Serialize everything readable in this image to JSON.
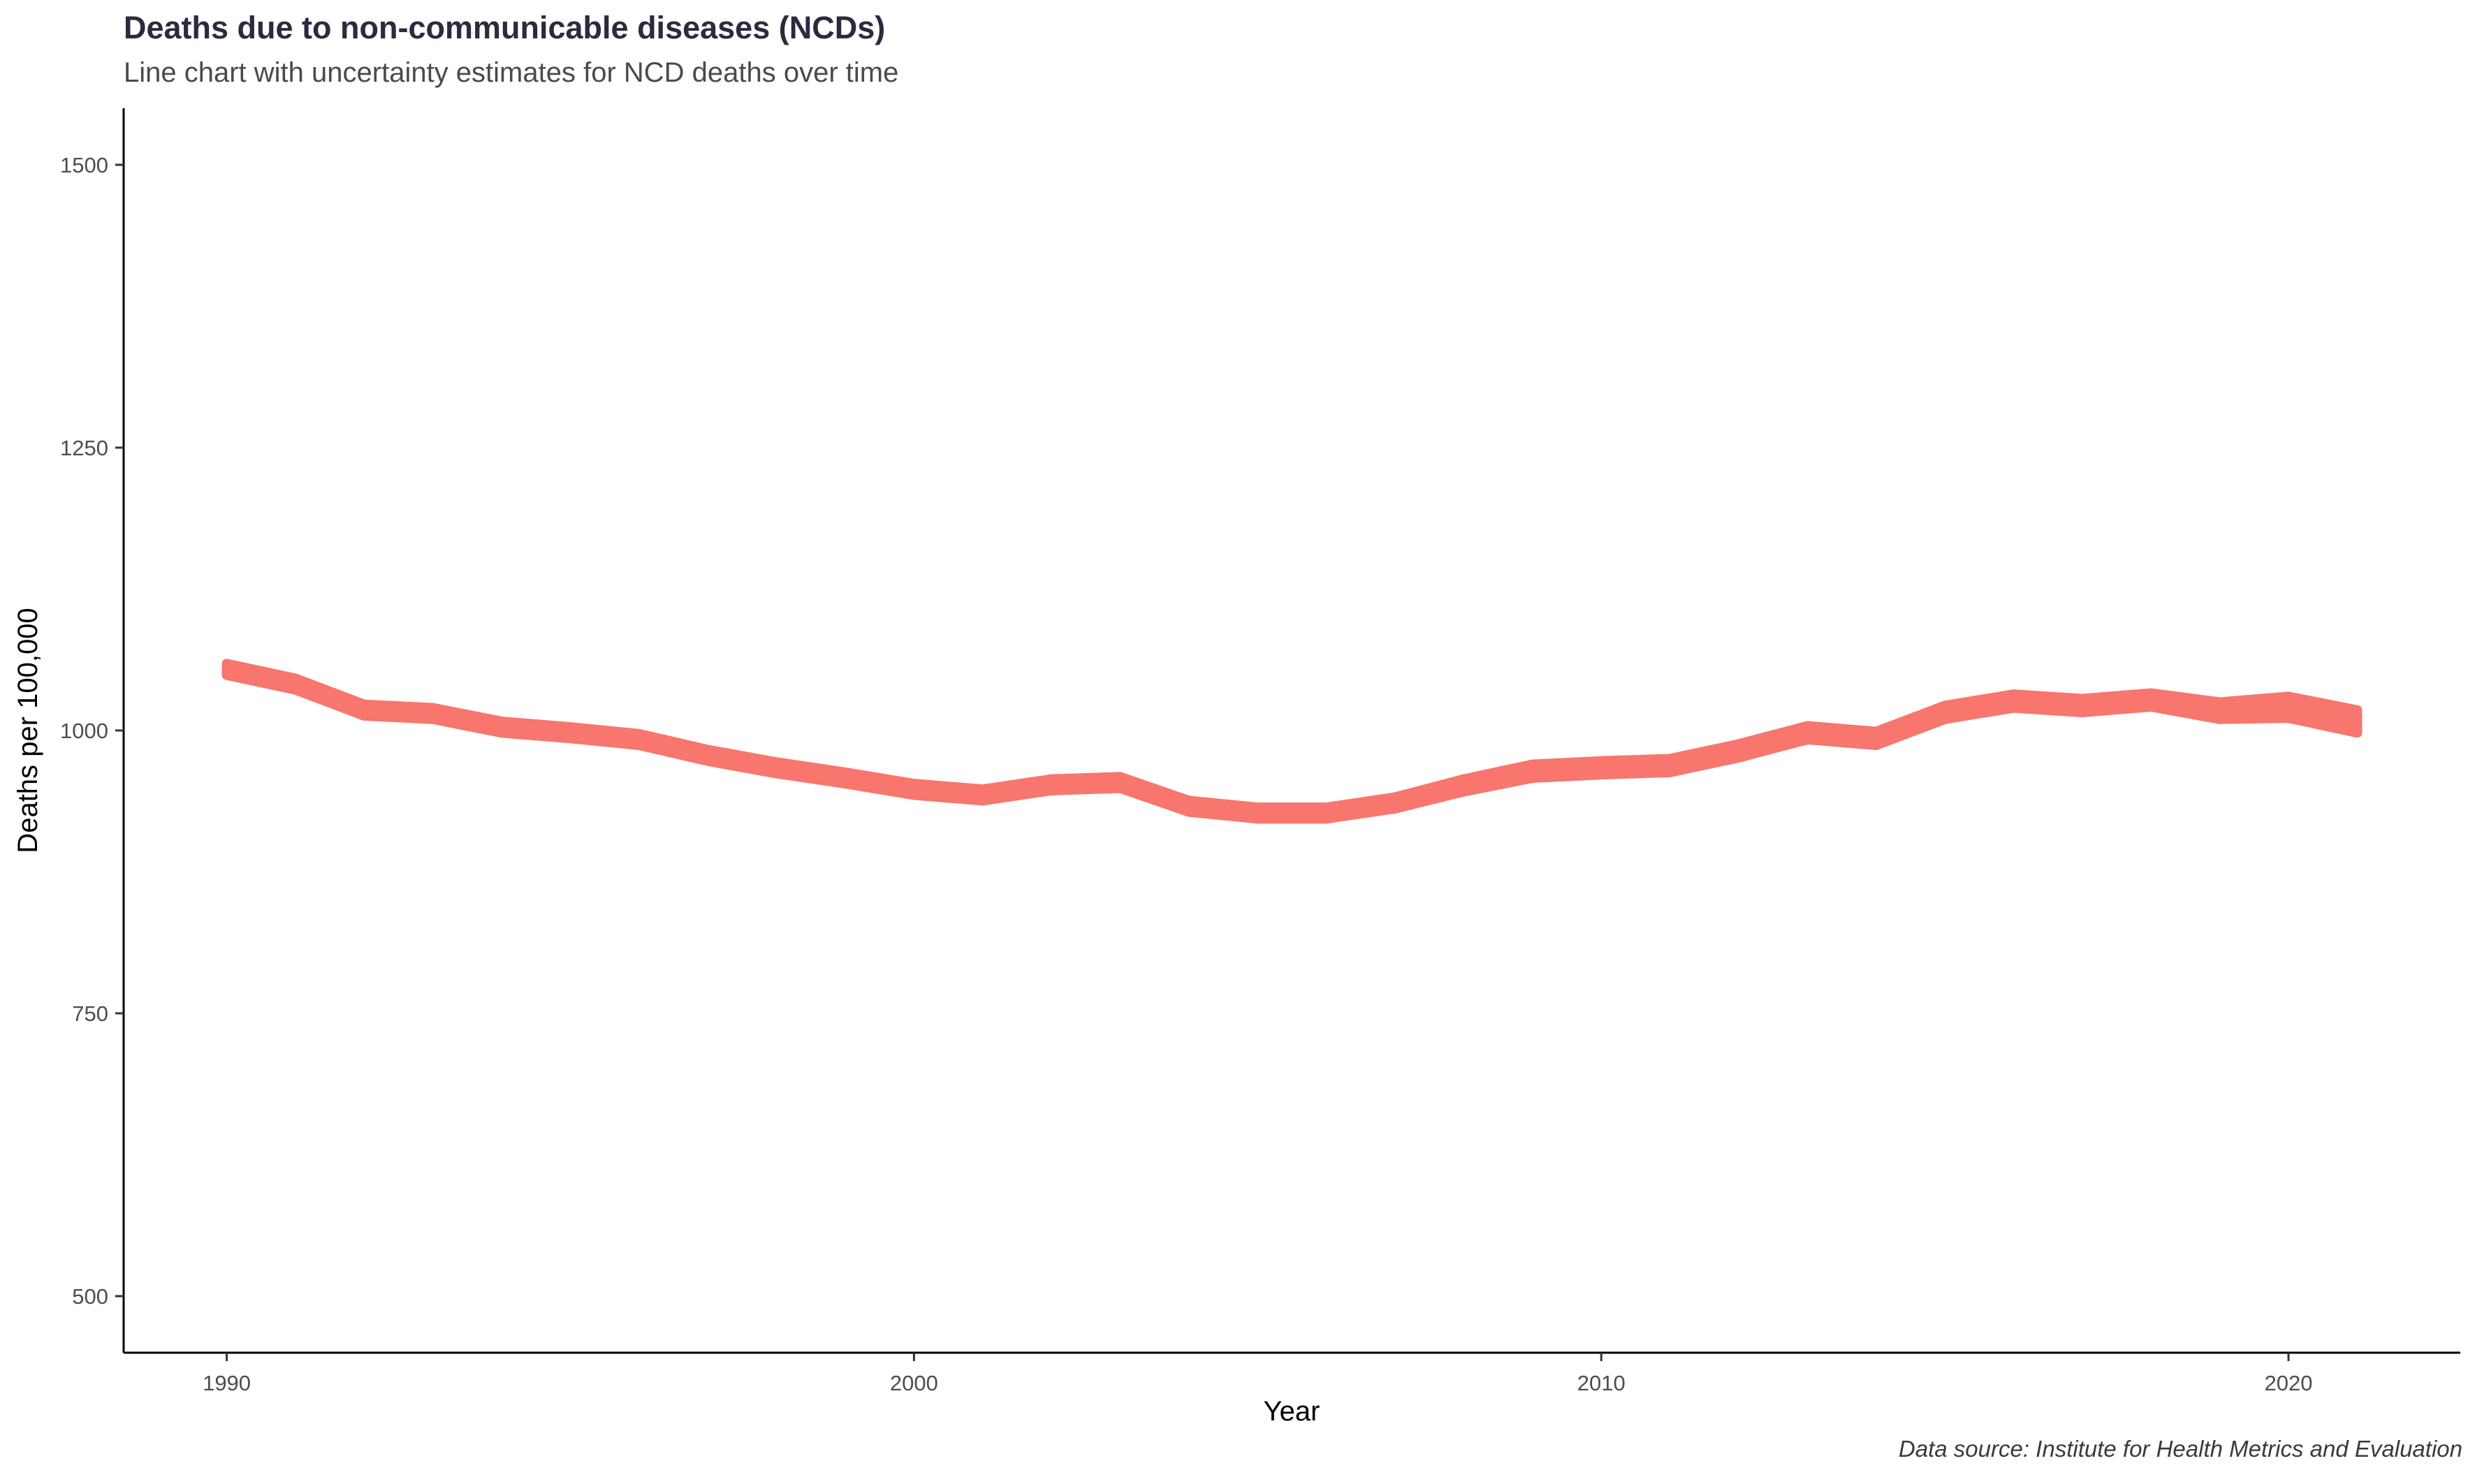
{
  "header": {
    "title": "Deaths due to non-communicable diseases (NCDs)",
    "subtitle": "Line chart with uncertainty estimates for NCD deaths over time"
  },
  "footer": {
    "caption": "Data source: Institute for Health Metrics and Evaluation"
  },
  "chart_data": {
    "type": "area",
    "title": "Deaths due to non-communicable diseases (NCDs)",
    "subtitle": "Line chart with uncertainty estimates for NCD deaths over time",
    "xlabel": "Year",
    "ylabel": "Deaths per 100,000",
    "xlim": [
      1988.5,
      2022.5
    ],
    "ylim": [
      450,
      1550
    ],
    "x_ticks": [
      1990,
      2000,
      2010,
      2020
    ],
    "y_ticks": [
      500,
      750,
      1000,
      1250,
      1500
    ],
    "grid": false,
    "legend": "none",
    "color": "#f8766d",
    "series": [
      {
        "x": [
          1990,
          1991,
          1992,
          1993,
          1994,
          1995,
          1996,
          1997,
          1998,
          1999,
          2000,
          2001,
          2002,
          2003,
          2004,
          2005,
          2006,
          2007,
          2008,
          2009,
          2010,
          2011,
          2012,
          2013,
          2014,
          2015,
          2016,
          2017,
          2018,
          2019,
          2020,
          2021
        ],
        "lower": [
          1049,
          1036,
          1013,
          1010,
          998,
          993,
          987,
          973,
          962,
          953,
          943,
          938,
          947,
          949,
          928,
          922,
          922,
          931,
          946,
          958,
          961,
          963,
          976,
          992,
          987,
          1010,
          1020,
          1016,
          1021,
          1010,
          1011,
          998
        ],
        "upper": [
          1059,
          1046,
          1023,
          1020,
          1008,
          1003,
          997,
          983,
          972,
          963,
          953,
          948,
          957,
          959,
          938,
          932,
          932,
          941,
          957,
          970,
          973,
          975,
          988,
          1004,
          999,
          1022,
          1032,
          1028,
          1033,
          1025,
          1030,
          1018
        ]
      }
    ]
  }
}
